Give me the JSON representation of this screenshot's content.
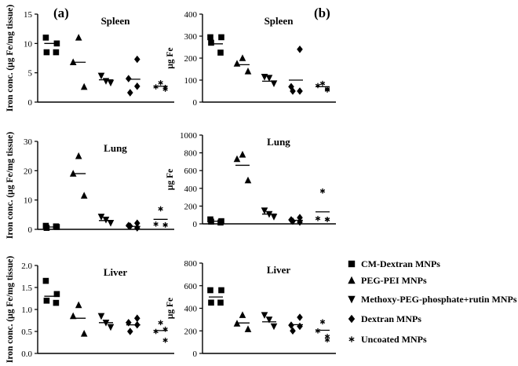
{
  "panel_labels": [
    "(a)",
    "(b)"
  ],
  "legend": [
    {
      "marker": "square",
      "label": "CM-Dextran MNPs"
    },
    {
      "marker": "triangle-up",
      "label": "PEG-PEI MNPs"
    },
    {
      "marker": "triangle-down",
      "label": "Methoxy-PEG-phosphate+rutin MNPs"
    },
    {
      "marker": "diamond",
      "label": "Dextran MNPs"
    },
    {
      "marker": "asterisk",
      "label": "Uncoated MNPs"
    }
  ],
  "chart_data": [
    {
      "type": "scatter",
      "panel": "(a)",
      "title": "Spleen",
      "xlabel": "",
      "ylabel": "Iron conc. (μg Fe/mg tissue)",
      "ylim": [
        0,
        15
      ],
      "yticks": [
        "0",
        "5",
        "10",
        "15"
      ],
      "series": [
        {
          "values": [
            11.0,
            10.0,
            8.5,
            8.5
          ],
          "mean": 10.0
        },
        {
          "values": [
            11.0,
            6.8,
            2.6
          ],
          "mean": 6.8
        },
        {
          "values": [
            4.5,
            3.6,
            3.3
          ],
          "mean": 3.8
        },
        {
          "values": [
            7.3,
            4.0,
            2.7,
            1.6
          ],
          "mean": 3.9
        },
        {
          "values": [
            3.3,
            2.6,
            2.2,
            2.5
          ],
          "mean": 2.7
        }
      ]
    },
    {
      "type": "scatter",
      "panel": "(b)",
      "title": "Spleen",
      "xlabel": "",
      "ylabel": "μg Fe",
      "ylim": [
        0,
        400
      ],
      "yticks": [
        "0",
        "100",
        "200",
        "300",
        "400"
      ],
      "series": [
        {
          "values": [
            295,
            295,
            270,
            225
          ],
          "mean": 265
        },
        {
          "values": [
            200,
            175,
            140
          ],
          "mean": 170
        },
        {
          "values": [
            115,
            110,
            85
          ],
          "mean": 95
        },
        {
          "values": [
            240,
            70,
            50,
            50
          ],
          "mean": 100
        },
        {
          "values": [
            85,
            75,
            60,
            55
          ],
          "mean": 70
        }
      ]
    },
    {
      "type": "scatter",
      "panel": "(a)",
      "title": "Lung",
      "xlabel": "",
      "ylabel": "Iron conc. (μg Fe/mg tissue)",
      "ylim": [
        0,
        30
      ],
      "yticks": [
        "0",
        "10",
        "20",
        "30"
      ],
      "series": [
        {
          "values": [
            1.2,
            0.8,
            0.5,
            1.0
          ],
          "mean": 0.8
        },
        {
          "values": [
            25.0,
            19.0,
            11.5
          ],
          "mean": 19.0
        },
        {
          "values": [
            4.3,
            3.3,
            2.2
          ],
          "mean": 3.0
        },
        {
          "values": [
            2.1,
            1.3,
            0.5,
            1.1
          ],
          "mean": 1.0
        },
        {
          "values": [
            7.0,
            1.8,
            1.5,
            1.5
          ],
          "mean": 3.4
        }
      ]
    },
    {
      "type": "scatter",
      "panel": "(b)",
      "title": "Lung",
      "xlabel": "",
      "ylabel": "μg Fe",
      "ylim": [
        0,
        1000
      ],
      "yticks": [
        "0",
        "200",
        "400",
        "600",
        "800",
        "1000"
      ],
      "series": [
        {
          "values": [
            50,
            30,
            25,
            15
          ],
          "mean": 30
        },
        {
          "values": [
            780,
            730,
            490
          ],
          "mean": 660
        },
        {
          "values": [
            150,
            110,
            80
          ],
          "mean": 110
        },
        {
          "values": [
            70,
            45,
            20,
            30
          ],
          "mean": 40
        },
        {
          "values": [
            370,
            60,
            50,
            50
          ],
          "mean": 135
        }
      ]
    },
    {
      "type": "scatter",
      "panel": "(a)",
      "title": "Liver",
      "xlabel": "",
      "ylabel": "Iron conc. (μg Fe/mg tissue)",
      "ylim": [
        0,
        2.0
      ],
      "yticks": [
        "0.0",
        "0.5",
        "1.0",
        "1.5",
        "2.0"
      ],
      "series": [
        {
          "values": [
            1.65,
            1.35,
            1.2,
            1.15
          ],
          "mean": 1.3
        },
        {
          "values": [
            1.1,
            0.85,
            0.45
          ],
          "mean": 0.8
        },
        {
          "values": [
            0.85,
            0.7,
            0.6
          ],
          "mean": 0.7
        },
        {
          "values": [
            0.8,
            0.7,
            0.65,
            0.5
          ],
          "mean": 0.65
        },
        {
          "values": [
            0.7,
            0.5,
            0.3,
            0.55
          ],
          "mean": 0.52
        }
      ]
    },
    {
      "type": "scatter",
      "panel": "(b)",
      "title": "Liver",
      "xlabel": "",
      "ylabel": "μg Fe",
      "ylim": [
        0,
        800
      ],
      "yticks": [
        "0",
        "200",
        "400",
        "600",
        "800"
      ],
      "series": [
        {
          "values": [
            560,
            560,
            450,
            450
          ],
          "mean": 500
        },
        {
          "values": [
            340,
            265,
            215
          ],
          "mean": 270
        },
        {
          "values": [
            340,
            300,
            240
          ],
          "mean": 280
        },
        {
          "values": [
            320,
            250,
            240,
            200
          ],
          "mean": 255
        },
        {
          "values": [
            280,
            200,
            150,
            120
          ],
          "mean": 205
        }
      ]
    }
  ]
}
